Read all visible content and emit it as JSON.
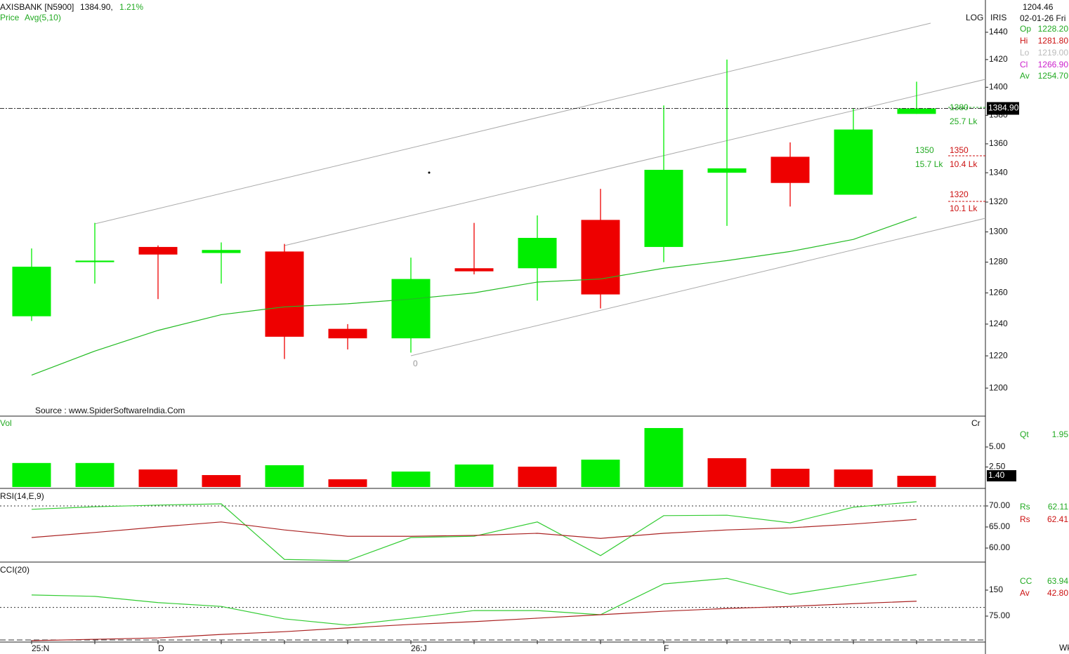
{
  "chart_data": [
    {
      "type": "candlestick",
      "title": "AXISBANK [N5900]",
      "last": "1384.90,",
      "change": "1.21%",
      "legend_label": "Price",
      "scale_label": "LOG",
      "side_label": "IRIS",
      "x_unit": "Wkl",
      "source": "Source : www.SpiderSoftwareIndia.Com",
      "categories": [
        "25:N",
        null,
        "D",
        null,
        null,
        null,
        "26:J",
        null,
        null,
        null,
        "F",
        null,
        null,
        null,
        null
      ],
      "open": [
        1245,
        1280,
        1290,
        1286,
        1287,
        1237,
        1231,
        1276,
        1276,
        1308,
        1290,
        1340,
        1351,
        1325,
        1381
      ],
      "high": [
        1289,
        1306,
        1291,
        1293,
        1292,
        1240,
        1283,
        1306,
        1311,
        1329,
        1387,
        1420,
        1361,
        1385,
        1404
      ],
      "low": [
        1242,
        1266,
        1256,
        1266,
        1218,
        1224,
        1222,
        1272,
        1255,
        1250,
        1280,
        1304,
        1317,
        1325,
        1381
      ],
      "close": [
        1277,
        1281,
        1285,
        1288,
        1232,
        1231,
        1269,
        1274,
        1296,
        1259,
        1342,
        1343,
        1333,
        1370,
        1384.9
      ],
      "up_color": "#00ee00",
      "down_color": "#ee0000",
      "series": [
        {
          "name": "Avg(5,10)",
          "color": "#22bb22",
          "values": [
            1208,
            1223,
            1236,
            1246,
            1251,
            1253,
            1256,
            1260,
            1267,
            1269,
            1276,
            1281,
            1287,
            1295,
            1310
          ]
        }
      ],
      "log_scale": true,
      "ylim": [
        1182.9,
        1464
      ],
      "yticks": [
        1200,
        1220,
        1240,
        1260,
        1280,
        1300,
        1320,
        1340,
        1360,
        1380,
        1400,
        1420,
        1440
      ],
      "last_price": {
        "value": 1384.9,
        "label": "1384.90"
      },
      "annotations": [
        "1380",
        "25.7 Lk",
        "1350",
        "15.7 Lk",
        "1350",
        "10.4 Lk",
        "1320",
        "10.1 Lk",
        "0"
      ],
      "info": {
        "value": "1204.46",
        "date": "02-01-26 Fri",
        "rows": [
          [
            "Op",
            "1228.20"
          ],
          [
            "Hi",
            "1281.80"
          ],
          [
            "Lo",
            "1219.00"
          ],
          [
            "Cl",
            "1266.90"
          ],
          [
            "Av",
            "1254.70"
          ]
        ]
      }
    },
    {
      "type": "bar",
      "title": "Vol",
      "unit_label": "Cr",
      "values": [
        3.0,
        3.0,
        2.19,
        1.49,
        2.72,
        0.96,
        1.93,
        2.81,
        2.54,
        3.42,
        7.37,
        3.6,
        2.28,
        2.19,
        1.4
      ],
      "colors": [
        "#00ee00",
        "#00ee00",
        "#ee0000",
        "#ee0000",
        "#00ee00",
        "#ee0000",
        "#00ee00",
        "#00ee00",
        "#ee0000",
        "#00ee00",
        "#00ee00",
        "#ee0000",
        "#ee0000",
        "#ee0000",
        "#ee0000"
      ],
      "ylim": [
        0,
        8.86
      ],
      "yticks": [
        {
          "value": 2.5,
          "label": "2.50"
        },
        {
          "value": 5,
          "label": "5.00"
        }
      ],
      "last": {
        "value": 1.4,
        "label": "1.40"
      },
      "readouts": [
        [
          "Qt",
          "1.95"
        ]
      ]
    },
    {
      "type": "line",
      "title": "RSI(14,E,9)",
      "series": [
        {
          "name": "Rs",
          "color": "#33cc33",
          "values": [
            69.2,
            69.8,
            70.2,
            70.5,
            57.3,
            57.0,
            62.5,
            62.8,
            66.2,
            58.2,
            67.7,
            67.8,
            66.0,
            69.7,
            71.0
          ]
        },
        {
          "name": "Rs",
          "color": "#aa2222",
          "values": [
            62.5,
            63.7,
            65.0,
            66.2,
            64.3,
            62.8,
            62.8,
            63.0,
            63.5,
            62.3,
            63.5,
            64.3,
            64.8,
            65.7,
            66.8
          ]
        }
      ],
      "readouts": [
        "62.11",
        "62.41"
      ],
      "ylim": [
        56.67,
        74
      ],
      "yticks": [
        {
          "value": 60,
          "label": "60.00"
        },
        {
          "value": 65,
          "label": "65.00"
        },
        {
          "value": 70,
          "label": "70.00"
        }
      ],
      "levels": [
        70
      ]
    },
    {
      "type": "line",
      "title": "CCI(20)",
      "series": [
        {
          "name": "CC",
          "color": "#33cc33",
          "values": [
            136,
            132,
            114,
            103,
            67,
            49,
            69,
            91,
            91,
            79,
            168,
            184,
            138,
            166,
            195
          ]
        },
        {
          "name": "Av",
          "color": "#aa2222",
          "values": [
            4,
            8,
            12,
            22,
            30,
            41,
            51,
            59,
            69,
            79,
            89,
            97,
            103,
            111,
            118
          ]
        }
      ],
      "readouts": [
        "63.94",
        "42.80"
      ],
      "ylim": [
        0,
        231
      ],
      "yticks": [
        {
          "value": 75,
          "label": "75.00"
        },
        150
      ],
      "levels": [
        100
      ]
    }
  ]
}
